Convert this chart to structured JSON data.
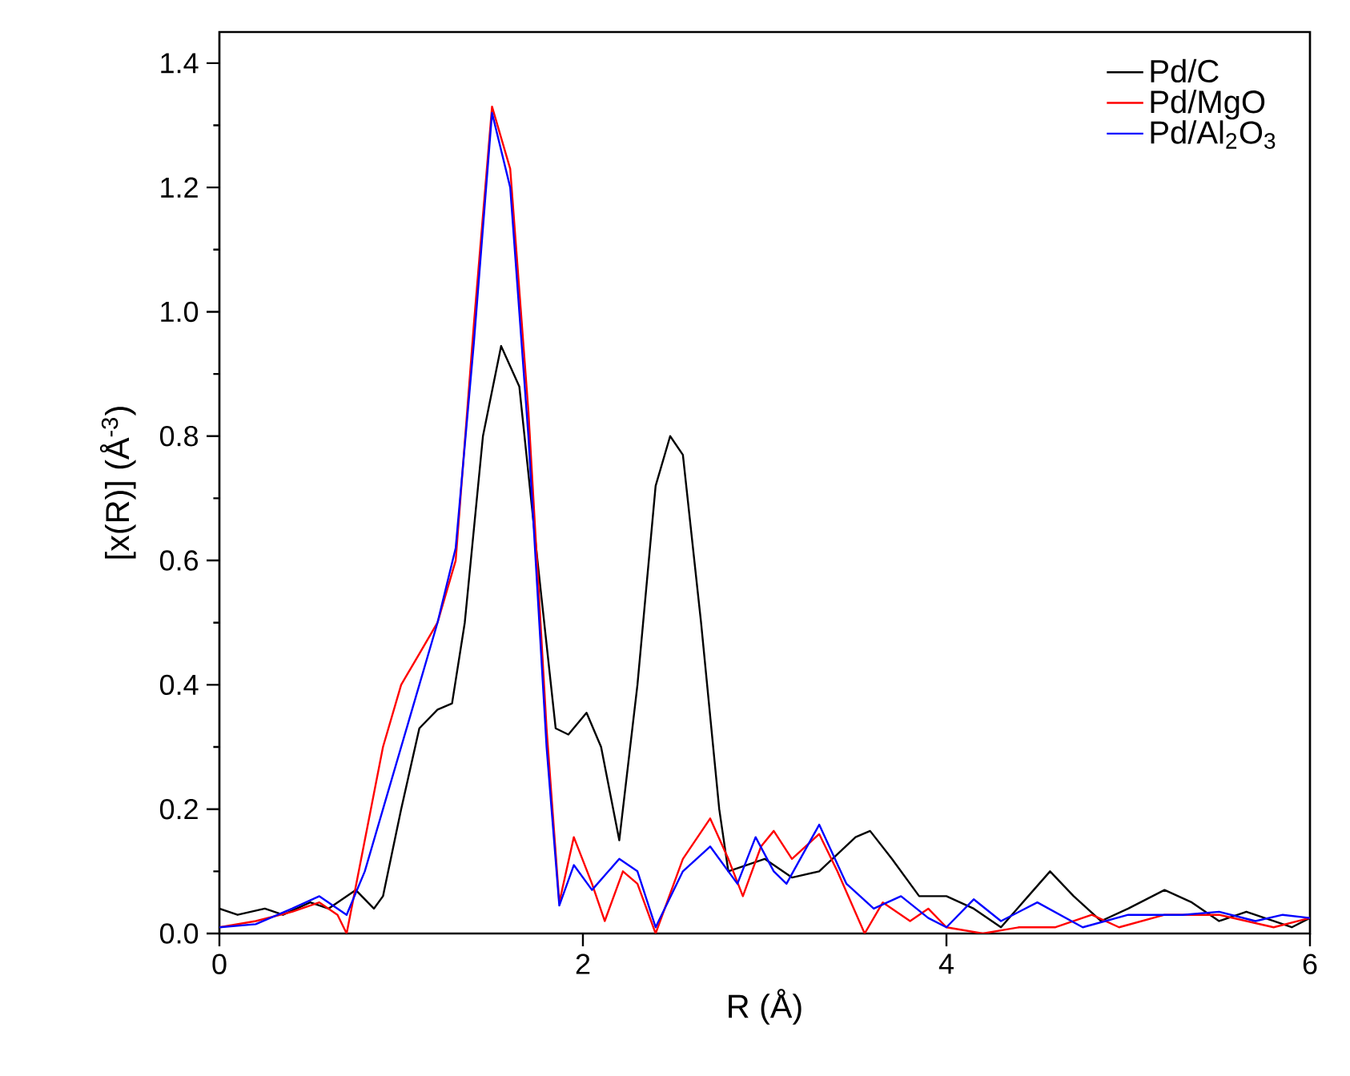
{
  "chart_data": {
    "type": "line",
    "xlabel": "R (Å)",
    "ylabel": "[x(R)] (Å$^{-3}$)",
    "xlim": [
      0,
      6
    ],
    "ylim": [
      0,
      1.45
    ],
    "xticks": [
      0,
      2,
      4,
      6
    ],
    "yticks": [
      {
        "value": 0,
        "label": "0.0"
      },
      0.2,
      0.4,
      0.6,
      0.8,
      {
        "value": 1,
        "label": "1.0"
      },
      1.2,
      1.4
    ],
    "legend": "top right",
    "grid": false,
    "marker": "none",
    "line_style": "solid",
    "series": [
      {
        "name": "Pd/C",
        "color": "#000000",
        "x": [
          0,
          0.1,
          0.25,
          0.35,
          0.5,
          0.6,
          0.75,
          0.85,
          0.9,
          1.0,
          1.1,
          1.2,
          1.28,
          1.35,
          1.45,
          1.55,
          1.65,
          1.75,
          1.85,
          1.92,
          2.02,
          2.1,
          2.2,
          2.3,
          2.4,
          2.48,
          2.55,
          2.65,
          2.75,
          2.8,
          2.9,
          3.0,
          3.15,
          3.3,
          3.5,
          3.58,
          3.7,
          3.85,
          4.0,
          4.15,
          4.3,
          4.45,
          4.57,
          4.7,
          4.85,
          5.0,
          5.2,
          5.35,
          5.5,
          5.65,
          5.8,
          5.9,
          6.0
        ],
        "values": [
          0.04,
          0.03,
          0.04,
          0.03,
          0.05,
          0.04,
          0.07,
          0.04,
          0.06,
          0.2,
          0.33,
          0.36,
          0.37,
          0.5,
          0.8,
          0.945,
          0.88,
          0.6,
          0.33,
          0.32,
          0.355,
          0.3,
          0.15,
          0.4,
          0.72,
          0.8,
          0.77,
          0.5,
          0.2,
          0.1,
          0.11,
          0.12,
          0.09,
          0.1,
          0.155,
          0.165,
          0.12,
          0.06,
          0.06,
          0.04,
          0.01,
          0.06,
          0.1,
          0.06,
          0.02,
          0.04,
          0.07,
          0.05,
          0.02,
          0.035,
          0.02,
          0.01,
          0.025
        ]
      },
      {
        "name": "Pd/MgO",
        "color": "#ff0000",
        "x": [
          0,
          0.2,
          0.4,
          0.55,
          0.65,
          0.7,
          0.8,
          0.9,
          1.0,
          1.1,
          1.2,
          1.3,
          1.4,
          1.5,
          1.6,
          1.7,
          1.8,
          1.87,
          1.95,
          2.05,
          2.12,
          2.22,
          2.3,
          2.4,
          2.55,
          2.7,
          2.8,
          2.88,
          2.98,
          3.05,
          3.15,
          3.3,
          3.4,
          3.55,
          3.65,
          3.8,
          3.9,
          4.0,
          4.2,
          4.4,
          4.6,
          4.8,
          4.95,
          5.2,
          5.5,
          5.8,
          6.0
        ],
        "values": [
          0.01,
          0.02,
          0.035,
          0.05,
          0.03,
          0.0,
          0.15,
          0.3,
          0.4,
          0.45,
          0.5,
          0.6,
          0.98,
          1.33,
          1.23,
          0.84,
          0.33,
          0.05,
          0.155,
          0.08,
          0.02,
          0.1,
          0.08,
          0.0,
          0.12,
          0.185,
          0.12,
          0.06,
          0.14,
          0.165,
          0.12,
          0.16,
          0.1,
          0.0,
          0.05,
          0.02,
          0.04,
          0.01,
          0.0,
          0.01,
          0.01,
          0.03,
          0.01,
          0.03,
          0.03,
          0.01,
          0.025
        ]
      },
      {
        "name": "Pd/Al$_{2}$O$_{3}$",
        "color": "#0000ff",
        "x": [
          0,
          0.2,
          0.4,
          0.55,
          0.65,
          0.7,
          0.8,
          0.9,
          1.0,
          1.1,
          1.2,
          1.3,
          1.4,
          1.5,
          1.6,
          1.7,
          1.8,
          1.87,
          1.95,
          2.05,
          2.2,
          2.3,
          2.4,
          2.55,
          2.7,
          2.85,
          2.95,
          3.05,
          3.12,
          3.3,
          3.45,
          3.6,
          3.75,
          3.9,
          4.0,
          4.15,
          4.3,
          4.5,
          4.75,
          5.0,
          5.3,
          5.5,
          5.7,
          5.85,
          6.0
        ],
        "values": [
          0.01,
          0.015,
          0.04,
          0.06,
          0.04,
          0.03,
          0.1,
          0.2,
          0.3,
          0.4,
          0.5,
          0.62,
          0.95,
          1.32,
          1.2,
          0.8,
          0.3,
          0.045,
          0.11,
          0.07,
          0.12,
          0.1,
          0.01,
          0.1,
          0.14,
          0.08,
          0.155,
          0.1,
          0.08,
          0.175,
          0.08,
          0.04,
          0.06,
          0.025,
          0.01,
          0.055,
          0.02,
          0.05,
          0.01,
          0.03,
          0.03,
          0.035,
          0.02,
          0.03,
          0.025
        ]
      }
    ]
  }
}
